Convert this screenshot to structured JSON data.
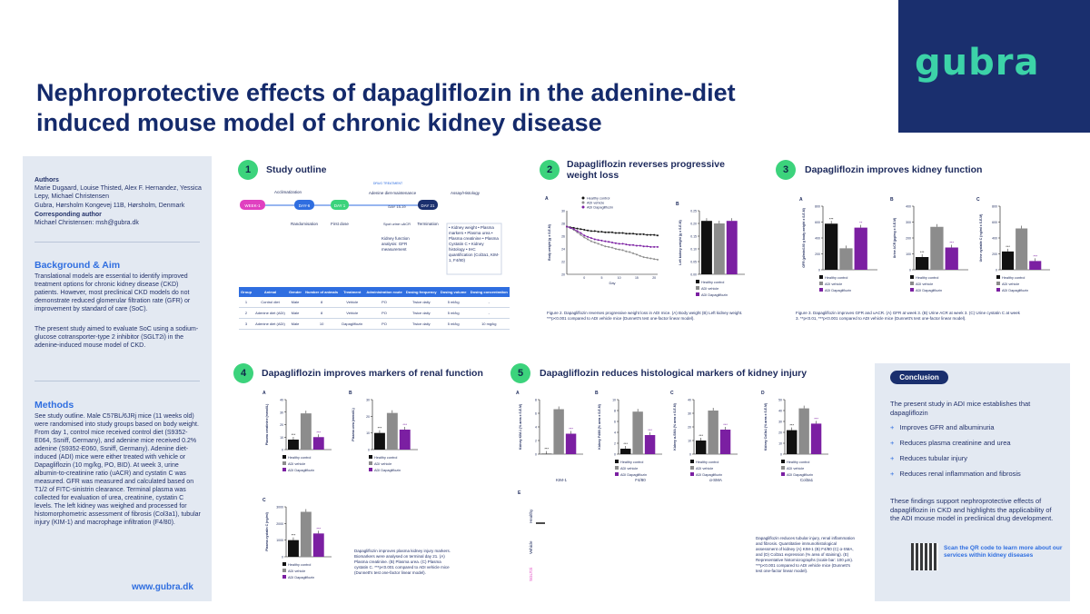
{
  "header": {
    "title_line1": "Nephroprotective effects of dapagliflozin in the adenine-diet",
    "title_line2": "induced mouse model of chronic kidney disease",
    "logo": "gubra"
  },
  "sidebar": {
    "authors_heading": "Authors",
    "authors": "Marie Dugaard, Louise Thisted, Alex F. Hernandez, Yessica Lepy, Michael Christensen",
    "affiliation": "Gubra, Hørsholm Kongevej 11B, Hørsholm, Denmark",
    "corr_heading": "Corresponding author",
    "corr": "Michael Christensen: msh@gubra.dk",
    "bg_heading": "Background & Aim",
    "bg_p1": "Translational models are essential to identify improved treatment options for chronic kidney disease (CKD) patients. However, most preclinical CKD models do not demonstrate reduced glomerular filtration rate (GFR) or improvement by standard of care (SoC).",
    "bg_p2": "The present study aimed to evaluate SoC using a sodium-glucose cotransporter-type 2 inhibitor (SGLT2i) in the adenine-induced mouse model of CKD.",
    "methods_heading": "Methods",
    "methods": "See study outline. Male C57BL/6JRj mice (11 weeks old) were randomised into study groups based on body weight. From day 1, control mice received control diet (S9352-E064, Ssniff, Germany), and adenine mice received 0.2% adenine (S9352-E060, Ssniff, Germany). Adenine diet-induced (ADI) mice were either treated with vehicle or Dapagliflozin (10 mg/kg, PO, BID). At week 3, urine albumin-to-creatinine ratio (uACR) and cystatin C was measured. GFR was measured and calculated based on T1/2 of FITC-sinistrin clearance. Terminal plasma was collected for evaluation of urea, creatinine, cystatin C levels. The left kidney was weighed and processed for histomorphometric assessment of fibrosis (Col3a1), tubular injury (KIM-1) and macrophage infiltration (F4/80).",
    "website": "www.gubra.dk"
  },
  "sections": {
    "s1": {
      "num": "1",
      "title": "Study outline"
    },
    "s2": {
      "num": "2",
      "title": "Dapagliflozin reverses progressive weight loss"
    },
    "s3": {
      "num": "3",
      "title": "Dapagliflozin improves kidney function"
    },
    "s4": {
      "num": "4",
      "title": "Dapagliflozin improves markers of renal function"
    },
    "s5": {
      "num": "5",
      "title": "Dapagliflozin reduces histological markers of kidney injury"
    }
  },
  "outline": {
    "acclimatization": "Acclimatization",
    "drug_treatment": "DRUG TREATMENT",
    "diet": "Adenine diet-maintenance",
    "assay": "Assay/Histology",
    "milestones": [
      "WEEK-1",
      "DAY-6",
      "DAY 1",
      "DAY 15-19",
      "DAY 21"
    ],
    "randomisation": "Randomisation",
    "first_dose": "First dose",
    "spot_urine": "Spot urine uACR",
    "termination": "Termination",
    "kidney_fn": "Kidney function analysis: GFR measurement",
    "terminal_list": "• Kidney weight • Plasma markers • Plasma urea • Plasma creatinine • Plasma Cystatin C • Kidney histology • IHC quantification (Col3a1, KIM-1, F4/80)"
  },
  "table": {
    "headers": [
      "Group",
      "Animal",
      "Gender",
      "Number of animals",
      "Treatment",
      "Administration route",
      "Dosing frequency",
      "Dosing volume",
      "Dosing concentration"
    ],
    "rows": [
      [
        "1",
        "Control diet",
        "Male",
        "8",
        "Vehicle",
        "PO",
        "Twice daily",
        "5 ml/kg",
        "-"
      ],
      [
        "2",
        "Adenine diet (ADI)",
        "Male",
        "8",
        "Vehicle",
        "PO",
        "Twice daily",
        "5 ml/kg",
        "-"
      ],
      [
        "3",
        "Adenine diet (ADI)",
        "Male",
        "10",
        "Dapagliflozin",
        "PO",
        "Twice daily",
        "5 ml/kg",
        "10 mg/kg"
      ]
    ]
  },
  "legend": [
    "Healthy control",
    "ADI vehicle",
    "ADI Dapagliflozin"
  ],
  "colors": {
    "control": "#111111",
    "vehicle": "#8c8c8c",
    "dapa": "#7b1fa2",
    "accent": "#2f6ee0",
    "badge": "#3cd37c"
  },
  "captions": {
    "fig2": "Figure 2. Dapagliflozin reverses progressive weight loss in ADI mice. (A) Body weight (B) Left kidney weight. ***p<0.001 compared to ADI vehicle mice (Dunnett's test one-factor linear model).",
    "fig3": "Figure 3. Dapagliflozin improves GFR and uACR. (A) GFR at week 3. (B) Urine ACR at week 3. (C) Urine cystatin C at week 3. **p<0.01, ***p<0.001 compared to ADI vehicle mice (Dunnett's test one-factor linear model).",
    "fig4": "Dapagliflozin improves plasma kidney injury markers. Biomarkers were analysed on terminal day 21. (A) Plasma creatinine. (B) Plasma urea. (C) Plasma cystatin C. ***p<0.001 compared to ADI vehicle mice (Dunnett's test one-factor linear model).",
    "fig5": "Dapagliflozin reduces tubular injury, renal inflammation and fibrosis. Quantitative immunohistological assessment of kidney (A) KIM-1 (B) F4/80 (C) α-SMA, and (D) Col3a1 expression (% area of staining). (E) Representative histomicrographs (scale bar: 100 µm). ***p<0.001 compared to ADI vehicle mice (Dunnett's test one-factor linear model)."
  },
  "chart_data": [
    {
      "type": "line",
      "panel": "2A",
      "ylabel": "Body weight (g ± S.E.M)",
      "xlabel": "Day",
      "x": [
        -5,
        -4,
        -3,
        -2,
        -1,
        0,
        1,
        2,
        3,
        4,
        5,
        6,
        7,
        8,
        9,
        10,
        11,
        12,
        13,
        14,
        15,
        16,
        17,
        18,
        19,
        20,
        21
      ],
      "series": [
        {
          "name": "Healthy control",
          "values": [
            27.5,
            27.4,
            27.3,
            27.2,
            27.1,
            27.0,
            26.9,
            26.8,
            26.8,
            26.7,
            26.7,
            26.6,
            26.6,
            26.6,
            26.5,
            26.5,
            26.5,
            26.4,
            26.4,
            26.4,
            26.3,
            26.3,
            26.3,
            26.2,
            26.2,
            26.2,
            26.1
          ]
        },
        {
          "name": "ADI vehicle",
          "values": [
            27.5,
            27.3,
            27.0,
            26.6,
            26.2,
            25.8,
            25.5,
            25.2,
            25.0,
            24.8,
            24.6,
            24.4,
            24.3,
            24.2,
            24.0,
            23.9,
            23.8,
            23.6,
            23.5,
            23.3,
            23.1,
            22.9,
            22.7,
            22.6,
            22.5,
            22.4,
            22.3
          ]
        },
        {
          "name": "ADI Dapagliflozin",
          "values": [
            27.5,
            27.3,
            27.1,
            26.8,
            26.5,
            26.1,
            25.9,
            25.7,
            25.5,
            25.4,
            25.3,
            25.2,
            25.1,
            25.0,
            24.9,
            24.8,
            24.8,
            24.7,
            24.6,
            24.6,
            24.5,
            24.5,
            24.4,
            24.4,
            24.3,
            24.3,
            24.3
          ]
        }
      ],
      "ylim": [
        20,
        30
      ],
      "yticks": [
        20,
        22,
        24,
        26,
        28,
        30
      ],
      "xticks": [
        0,
        5,
        10,
        15,
        20
      ]
    },
    {
      "type": "bar",
      "panel": "2B",
      "ylabel": "Left kidney weight (g ± S.E.M)",
      "categories": [
        "Healthy control",
        "ADI vehicle",
        "ADI Dapagliflozin"
      ],
      "values": [
        0.21,
        0.2,
        0.21
      ],
      "ylim": [
        0,
        0.25
      ],
      "yticks": [
        "0.00",
        "0.05",
        "0.10",
        "0.15",
        "0.20",
        "0.25"
      ]
    },
    {
      "type": "bar",
      "panel": "3A",
      "ylabel": "GFR (µl/min/100 g body weight ± S.E.M)",
      "categories": [
        "Healthy control",
        "ADI vehicle",
        "ADI Dapagliflozin"
      ],
      "values": [
        580,
        270,
        530
      ],
      "ylim": [
        0,
        800
      ],
      "yticks": [
        "0",
        "200",
        "400",
        "600",
        "800"
      ],
      "sig": [
        "***",
        "",
        "**"
      ]
    },
    {
      "type": "bar",
      "panel": "3B",
      "ylabel": "Urine ACR (µg/mg ± S.E.M)",
      "categories": [
        "Healthy control",
        "ADI vehicle",
        "ADI Dapagliflozin"
      ],
      "values": [
        80,
        270,
        140
      ],
      "ylim": [
        0,
        400
      ],
      "yticks": [
        "0",
        "100",
        "200",
        "300",
        "400"
      ],
      "sig": [
        "***",
        "",
        "***"
      ]
    },
    {
      "type": "bar",
      "panel": "3C",
      "ylabel": "Urine cystatin C (ng/ml ± S.E.M)",
      "categories": [
        "Healthy control",
        "ADI vehicle",
        "ADI Dapagliflozin"
      ],
      "values": [
        230,
        520,
        110
      ],
      "ylim": [
        0,
        800
      ],
      "yticks": [
        "0",
        "200",
        "400",
        "600",
        "800"
      ],
      "sig": [
        "***",
        "",
        "***"
      ]
    },
    {
      "type": "bar",
      "panel": "4A",
      "ylabel": "Plasma creatinine (mmol/L)",
      "categories": [
        "Healthy control",
        "ADI vehicle",
        "ADI Dapagliflozin"
      ],
      "values": [
        8,
        29,
        10
      ],
      "ylim": [
        0,
        40
      ],
      "yticks": [
        "0",
        "10",
        "20",
        "30",
        "40"
      ],
      "sig": [
        "***",
        "",
        "***"
      ]
    },
    {
      "type": "bar",
      "panel": "4B",
      "ylabel": "Plasma urea (mmol/L)",
      "categories": [
        "Healthy control",
        "ADI vehicle",
        "ADI Dapagliflozin"
      ],
      "values": [
        10,
        22,
        12
      ],
      "ylim": [
        0,
        30
      ],
      "yticks": [
        "0",
        "10",
        "20",
        "30"
      ],
      "sig": [
        "***",
        "",
        "***"
      ]
    },
    {
      "type": "bar",
      "panel": "4C",
      "ylabel": "Plasma cystatin C (ng/ml)",
      "categories": [
        "Healthy control",
        "ADI vehicle",
        "ADI Dapagliflozin"
      ],
      "values": [
        1000,
        2700,
        1400
      ],
      "ylim": [
        0,
        3000
      ],
      "yticks": [
        "0",
        "1000",
        "2000",
        "3000"
      ],
      "sig": [
        "***",
        "",
        "***"
      ]
    },
    {
      "type": "bar",
      "panel": "5A",
      "label": "KIM-1",
      "ylabel": "Kidney KIM-1 (% area ± S.E.M)",
      "categories": [
        "Healthy control",
        "ADI vehicle",
        "ADI Dapagliflozin"
      ],
      "values": [
        0.05,
        6.6,
        3.0
      ],
      "ylim": [
        0,
        8
      ],
      "yticks": [
        "0",
        "2",
        "4",
        "6",
        "8"
      ],
      "sig": [
        "***",
        "",
        "***"
      ]
    },
    {
      "type": "bar",
      "panel": "5B",
      "label": "F4/80",
      "ylabel": "Kidney F4/80 (% area ± S.E.M)",
      "categories": [
        "Healthy control",
        "ADI vehicle",
        "ADI Dapagliflozin"
      ],
      "values": [
        1.0,
        7.8,
        3.5
      ],
      "ylim": [
        0,
        10
      ],
      "yticks": [
        "0",
        "2",
        "4",
        "6",
        "8",
        "10"
      ],
      "sig": [
        "***",
        "",
        "***"
      ]
    },
    {
      "type": "bar",
      "panel": "5C",
      "label": "α-SMA",
      "ylabel": "Kidney α-SMA (% area ± S.E.M)",
      "categories": [
        "Healthy control",
        "ADI vehicle",
        "ADI Dapagliflozin"
      ],
      "values": [
        10,
        32,
        18
      ],
      "ylim": [
        0,
        40
      ],
      "yticks": [
        "0",
        "10",
        "20",
        "30",
        "40"
      ],
      "sig": [
        "***",
        "",
        "***"
      ]
    },
    {
      "type": "bar",
      "panel": "5D",
      "label": "Col3a1",
      "ylabel": "Kidney Col3a1 (% area ± S.E.M)",
      "categories": [
        "Healthy control",
        "ADI vehicle",
        "ADI Dapagliflozin"
      ],
      "values": [
        22,
        42,
        28
      ],
      "ylim": [
        0,
        50
      ],
      "yticks": [
        "0",
        "10",
        "20",
        "30",
        "40",
        "50"
      ],
      "sig": [
        "***",
        "",
        "***"
      ]
    }
  ],
  "histo": {
    "panel": "E",
    "rows": [
      "Healthy",
      "Vehicle",
      "SGLT2i"
    ]
  },
  "conclusion": {
    "badge": "Conclusion",
    "intro": "The present study in ADI mice establishes that dapagliflozin",
    "items": [
      "Improves GFR and albuminuria",
      "Reduces plasma creatinine and urea",
      "Reduces tubular injury",
      "Reduces renal inflammation and fibrosis"
    ],
    "summary": "These findings support nephroprotective effects of dapagliflozin in CKD and highlights the applicability of the ADI mouse model in preclinical drug development.",
    "qr_text": "Scan the QR code to learn more about our services within kidney diseases"
  }
}
